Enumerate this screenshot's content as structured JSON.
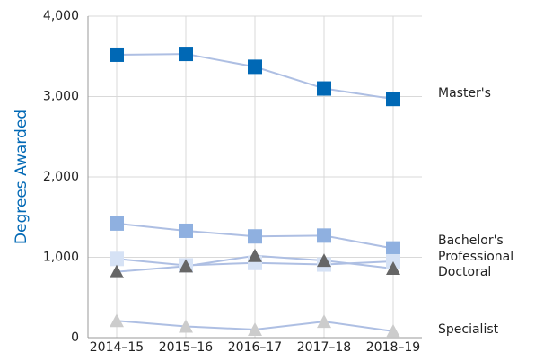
{
  "chart_data": {
    "type": "line",
    "y_label": "Degrees Awarded",
    "categories": [
      "2014–15",
      "2015–16",
      "2016–17",
      "2017–18",
      "2018–19"
    ],
    "line_color": "#aebfe3",
    "series": [
      {
        "name": "Master's",
        "color": "#0068b5",
        "marker": "square",
        "values": [
          3520,
          3530,
          3370,
          3100,
          2970
        ]
      },
      {
        "name": "Bachelor's",
        "color": "#8fb0e0",
        "marker": "square",
        "values": [
          1420,
          1330,
          1260,
          1270,
          1110
        ]
      },
      {
        "name": "Professional",
        "color": "#d6e2f5",
        "marker": "square",
        "values": [
          980,
          900,
          930,
          910,
          950
        ]
      },
      {
        "name": "Doctoral",
        "color": "#666666",
        "marker": "triangle",
        "values": [
          820,
          890,
          1020,
          960,
          860
        ]
      },
      {
        "name": "Specialist",
        "color": "#cccccc",
        "marker": "triangle",
        "values": [
          210,
          140,
          100,
          200,
          80
        ]
      }
    ],
    "ylim": [
      0,
      4000
    ],
    "yticks": [
      0,
      {
        "value": 1000,
        "label": "1,000"
      },
      {
        "value": 2000,
        "label": "2,000"
      },
      {
        "value": 3000,
        "label": "3,000"
      },
      {
        "value": 4000,
        "label": "4,000"
      }
    ],
    "grid": true
  }
}
